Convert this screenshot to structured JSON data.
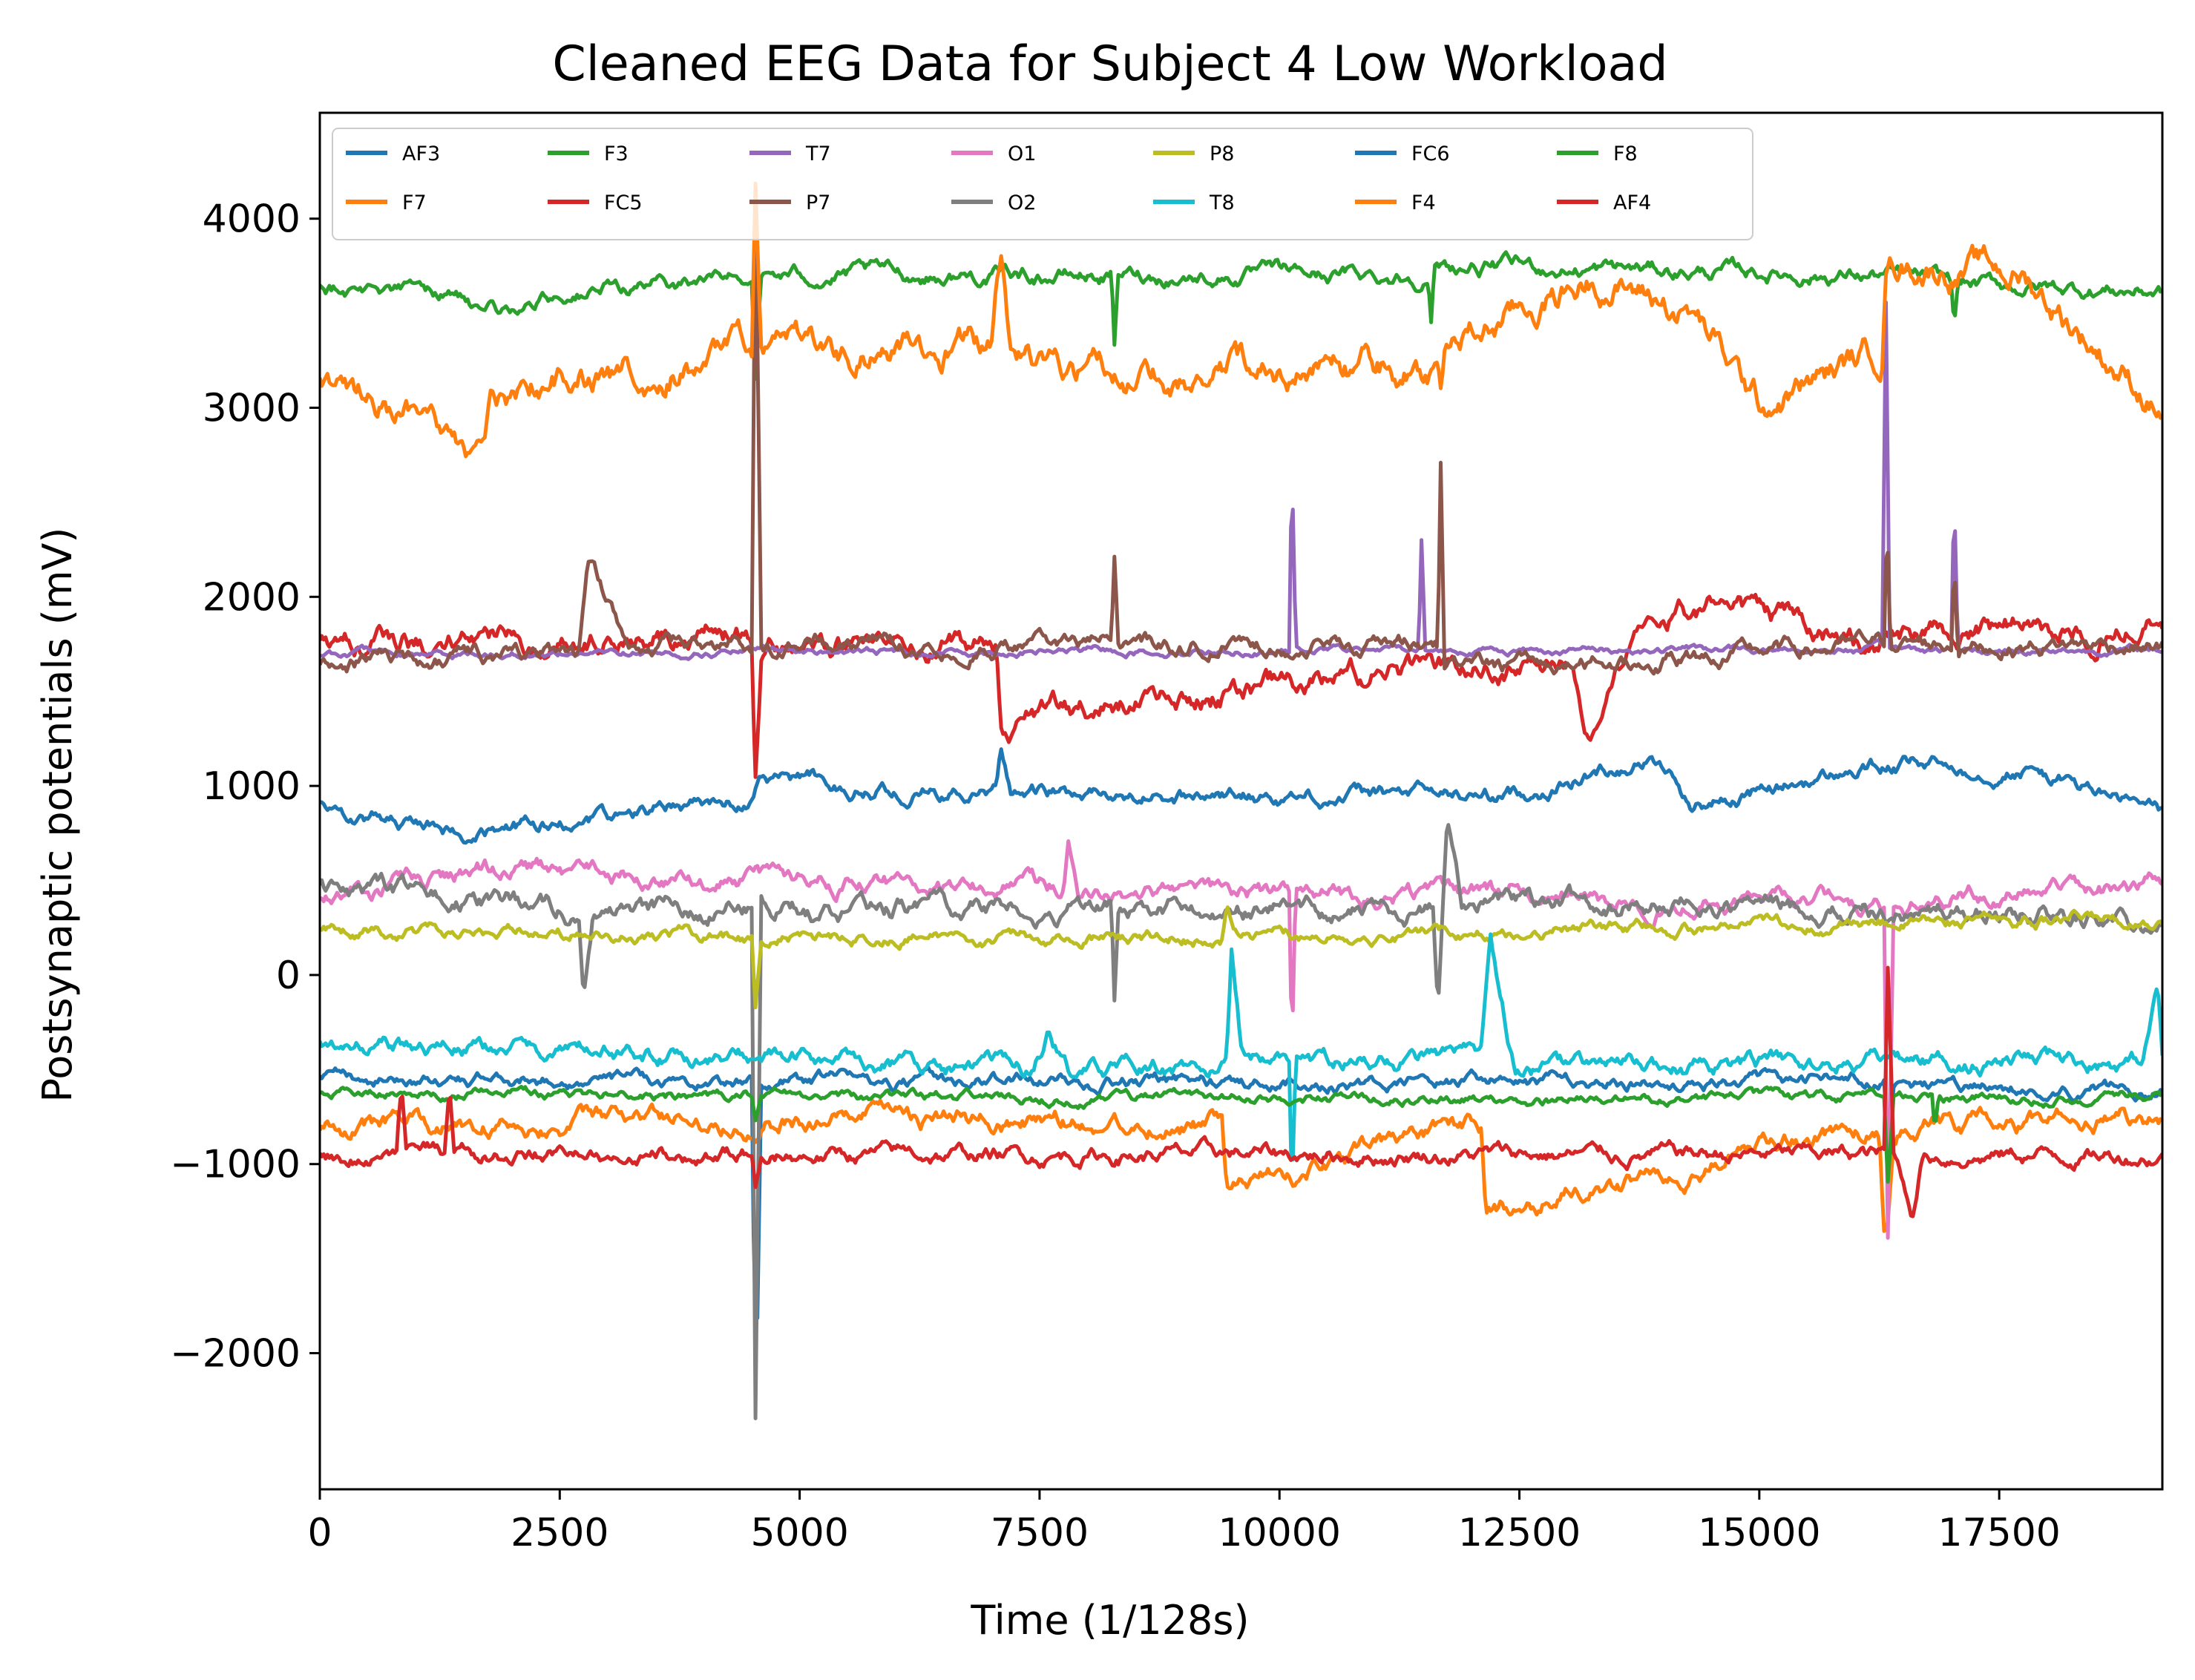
{
  "chart_data": {
    "type": "line",
    "title": "Cleaned EEG Data for Subject 4 Low Workload",
    "xlabel": "Time (1/128s)",
    "ylabel": "Postsynaptic potentials (mV)",
    "xlim": [
      0,
      19200
    ],
    "ylim": [
      -2720,
      4560
    ],
    "grid": false,
    "legend": {
      "placement": "top-left",
      "columns": 7
    },
    "x_ticks": [
      {
        "value": 0,
        "label": "0"
      },
      {
        "value": 2500,
        "label": "2500"
      },
      {
        "value": 5000,
        "label": "5000"
      },
      {
        "value": 7500,
        "label": "7500"
      },
      {
        "value": 10000,
        "label": "10000"
      },
      {
        "value": 12500,
        "label": "12500"
      },
      {
        "value": 15000,
        "label": "15000"
      },
      {
        "value": 17500,
        "label": "17500"
      }
    ],
    "y_ticks": [
      {
        "value": 4000,
        "label": "4000"
      },
      {
        "value": 3000,
        "label": "3000"
      },
      {
        "value": 2000,
        "label": "2000"
      },
      {
        "value": 1000,
        "label": "1000"
      },
      {
        "value": 0,
        "label": "0"
      },
      {
        "value": -1000,
        "label": "−1000"
      },
      {
        "value": -2000,
        "label": "−2000"
      }
    ],
    "series": [
      {
        "name": "AF3",
        "color": "#1f77b4",
        "base": -600,
        "noise": 45,
        "x": [
          0,
          4500,
          4530,
          4560,
          4600,
          11800,
          16300,
          16340,
          16400,
          19200
        ],
        "y": [
          -550,
          -560,
          -1800,
          -1800,
          -560,
          -570,
          -560,
          -900,
          -600,
          -600
        ]
      },
      {
        "name": "F7",
        "color": "#ff7f0e",
        "base": -780,
        "noise": 70,
        "x": [
          0,
          4500,
          9400,
          9450,
          12100,
          12150,
          16250,
          16300,
          16340,
          16400,
          19200
        ],
        "y": [
          -800,
          -760,
          -780,
          -1150,
          -790,
          -1250,
          -800,
          -1300,
          -1250,
          -800,
          -760
        ]
      },
      {
        "name": "F3",
        "color": "#2ca02c",
        "base": 3650,
        "noise": 55,
        "x": [
          0,
          1500,
          1700,
          2500,
          4500,
          4540,
          4600,
          8250,
          8280,
          8320,
          11550,
          11580,
          11620,
          16300,
          17000,
          17030,
          17070,
          19200
        ],
        "y": [
          3650,
          3600,
          3450,
          3600,
          3700,
          3200,
          3700,
          3700,
          3300,
          3700,
          3700,
          3450,
          3750,
          3700,
          3650,
          3400,
          3650,
          3620
        ]
      },
      {
        "name": "FC5",
        "color": "#d62728",
        "base": 1780,
        "noise": 85,
        "x": [
          0,
          4500,
          4540,
          4600,
          7050,
          7100,
          13000,
          13200,
          13500,
          14000,
          14800,
          16000,
          19200
        ],
        "y": [
          1750,
          1800,
          1100,
          1750,
          1750,
          1350,
          1700,
          1250,
          1550,
          1900,
          1950,
          1750,
          1900
        ]
      },
      {
        "name": "T7",
        "color": "#9467bd",
        "base": 1720,
        "noise": 25,
        "x": [
          0,
          10100,
          10130,
          10170,
          11450,
          11480,
          11520,
          16280,
          16320,
          16360,
          17000,
          17030,
          17070,
          19200
        ],
        "y": [
          1700,
          1720,
          2700,
          1720,
          1720,
          2300,
          1720,
          1720,
          3550,
          1720,
          1720,
          2550,
          1720,
          1720
        ]
      },
      {
        "name": "P7",
        "color": "#8c564b",
        "base": 1720,
        "noise": 60,
        "x": [
          0,
          2700,
          2800,
          3200,
          4500,
          4540,
          4600,
          8250,
          8280,
          8320,
          11650,
          11680,
          11720,
          16300,
          16330,
          16370,
          17000,
          17030,
          17070,
          19200
        ],
        "y": [
          1650,
          1700,
          2150,
          1750,
          1750,
          4200,
          1750,
          1750,
          2200,
          1750,
          1750,
          2700,
          1600,
          1750,
          2450,
          1750,
          1750,
          2250,
          1750,
          1750
        ]
      },
      {
        "name": "O1",
        "color": "#e377c2",
        "base": 420,
        "noise": 65,
        "x": [
          0,
          1700,
          7750,
          7800,
          7900,
          10100,
          10130,
          10170,
          16300,
          16340,
          16400,
          19200
        ],
        "y": [
          400,
          550,
          450,
          720,
          420,
          420,
          -450,
          420,
          400,
          -1350,
          400,
          480
        ]
      },
      {
        "name": "O2",
        "color": "#7f7f7f",
        "base": 380,
        "noise": 70,
        "x": [
          0,
          2700,
          2750,
          2850,
          4500,
          4540,
          4600,
          8250,
          8280,
          8320,
          11600,
          11650,
          11750,
          11900,
          19200
        ],
        "y": [
          450,
          350,
          -50,
          350,
          350,
          -2400,
          350,
          350,
          -150,
          350,
          350,
          -200,
          800,
          400,
          300
        ]
      },
      {
        "name": "P8",
        "color": "#bcbd22",
        "base": 200,
        "noise": 45,
        "x": [
          0,
          4500,
          4540,
          4600,
          9400,
          9450,
          9600,
          19200
        ],
        "y": [
          250,
          200,
          -150,
          200,
          200,
          400,
          200,
          300
        ]
      },
      {
        "name": "T8",
        "color": "#17becf",
        "base": -470,
        "noise": 60,
        "x": [
          0,
          7400,
          7600,
          7800,
          9450,
          9500,
          9600,
          10100,
          10130,
          10170,
          12100,
          12200,
          12450,
          19000,
          19150,
          19200
        ],
        "y": [
          -350,
          -500,
          -300,
          -500,
          -500,
          80,
          -400,
          -450,
          -1150,
          -450,
          -450,
          100,
          -500,
          -450,
          -50,
          -450
        ]
      },
      {
        "name": "FC6",
        "color": "#1f77b4",
        "base": 950,
        "noise": 55,
        "x": [
          0,
          1700,
          4500,
          4600,
          7050,
          7100,
          7200,
          12500,
          13800,
          14000,
          14300,
          16250,
          17750,
          19200
        ],
        "y": [
          900,
          750,
          950,
          1050,
          950,
          1150,
          950,
          950,
          1150,
          1100,
          900,
          1100,
          1100,
          850
        ]
      },
      {
        "name": "F4",
        "color": "#ff7f0e",
        "base": 3250,
        "noise": 110,
        "x": [
          0,
          1700,
          1800,
          2500,
          4500,
          4540,
          4600,
          7000,
          7100,
          7200,
          11650,
          11680,
          11720,
          13300,
          13800,
          14300,
          15000,
          16280,
          16320,
          17750,
          19200
        ],
        "y": [
          3200,
          2700,
          3000,
          3150,
          3300,
          4150,
          3300,
          3300,
          3800,
          3200,
          3200,
          3050,
          3300,
          3700,
          3600,
          3500,
          3000,
          3300,
          3800,
          3700,
          3000
        ]
      },
      {
        "name": "F8",
        "color": "#2ca02c",
        "base": -650,
        "noise": 35,
        "x": [
          0,
          4500,
          4540,
          4600,
          16300,
          16340,
          16400,
          16800,
          16830,
          16870,
          19200
        ],
        "y": [
          -620,
          -640,
          -780,
          -650,
          -660,
          -1100,
          -660,
          -660,
          -850,
          -660,
          -640
        ]
      },
      {
        "name": "AF4",
        "color": "#d62728",
        "base": -950,
        "noise": 55,
        "x": [
          0,
          800,
          850,
          900,
          1300,
          1350,
          1400,
          4500,
          4540,
          4600,
          16300,
          16340,
          16400,
          16600,
          16700,
          19200
        ],
        "y": [
          -950,
          -950,
          -600,
          -950,
          -950,
          -600,
          -950,
          -950,
          -1100,
          -950,
          -950,
          0,
          -950,
          -1250,
          -950,
          -950
        ]
      }
    ]
  }
}
